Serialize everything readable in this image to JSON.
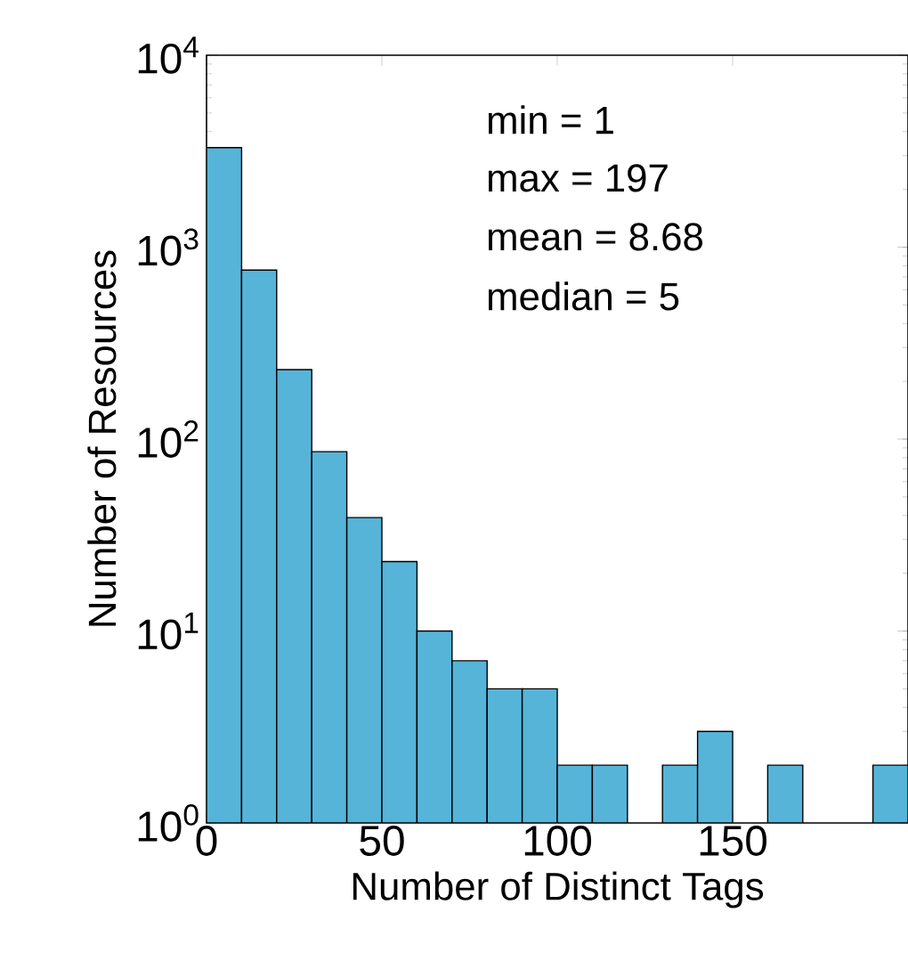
{
  "chart_data": {
    "type": "histogram",
    "xlabel": "Number of Distinct Tags",
    "ylabel": "Number of Resources",
    "bins": [
      0,
      10,
      20,
      30,
      40,
      50,
      60,
      70,
      80,
      90,
      100,
      110,
      120,
      130,
      140,
      150,
      160,
      170,
      180,
      190,
      200
    ],
    "values": [
      3300,
      760,
      230,
      86,
      39,
      23,
      10,
      7,
      5,
      5,
      2,
      2,
      null,
      2,
      3,
      null,
      2,
      null,
      null,
      2
    ],
    "color": "#56b4d9",
    "log": "y",
    "xlim": [
      0,
      200
    ],
    "xticks": [
      0,
      50,
      100,
      150
    ],
    "ylim": [
      1,
      10000
    ],
    "yticks": [
      {
        "value": 1,
        "label": "10$^{0}$"
      },
      {
        "value": 10,
        "label": "10$^{1}$"
      },
      {
        "value": 100,
        "label": "10$^{2}$"
      },
      {
        "value": 1000,
        "label": "10$^{3}$"
      },
      {
        "value": 10000,
        "label": "10$^{4}$"
      }
    ],
    "annotations": [
      "min = 1",
      "max = 197",
      "mean =  8.68",
      "median = 5"
    ]
  }
}
